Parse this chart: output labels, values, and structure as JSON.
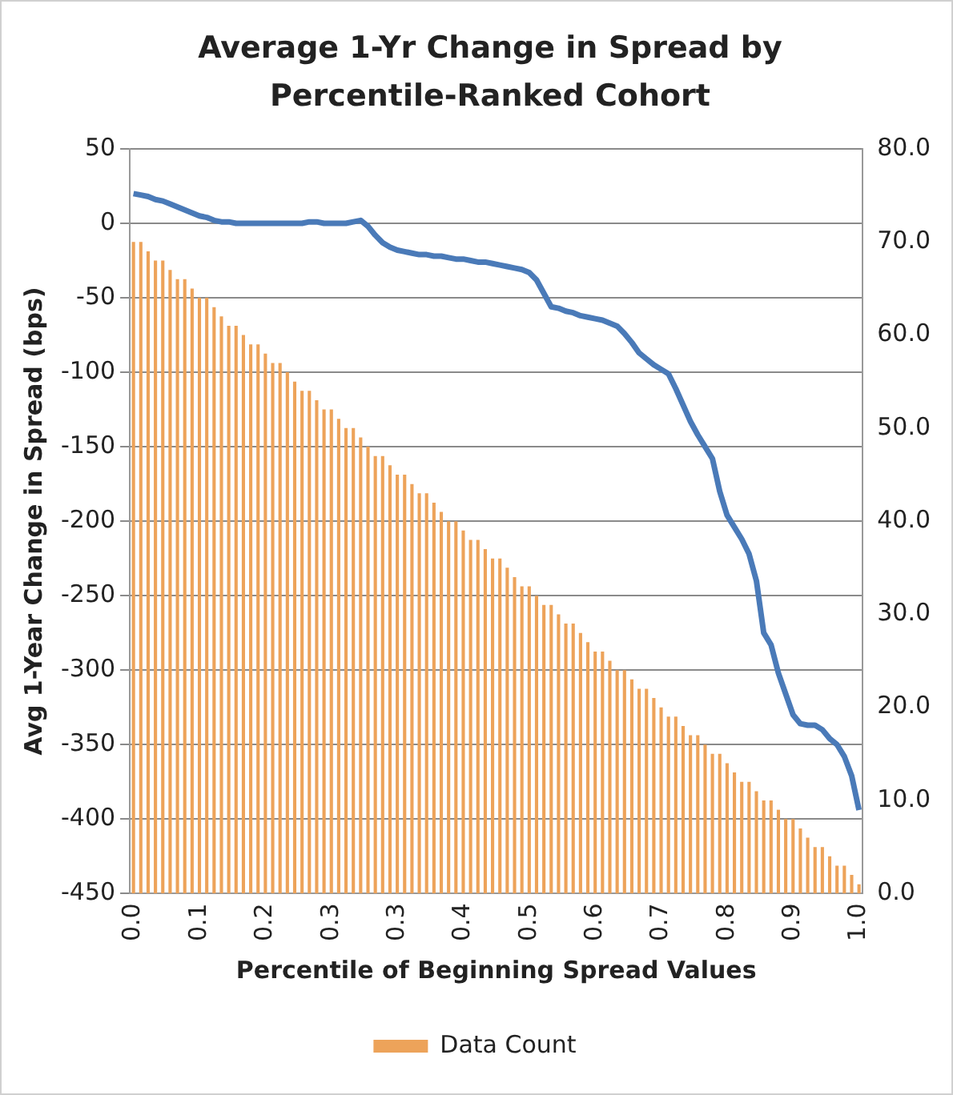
{
  "chart_data": {
    "type": "bar",
    "title": "Average 1-Yr Change in Spread by Percentile-Ranked Cohort",
    "xlabel": "Percentile of Beginning Spread Values",
    "ylabel": "Avg 1-Year Change in Spread (bps)",
    "categories": [
      "0.0",
      null,
      null,
      null,
      null,
      null,
      null,
      null,
      null,
      "0.1",
      null,
      null,
      null,
      null,
      null,
      null,
      null,
      null,
      "0.2",
      null,
      null,
      null,
      null,
      null,
      null,
      null,
      null,
      "0.3",
      null,
      null,
      null,
      null,
      null,
      null,
      null,
      null,
      "0.3",
      null,
      null,
      null,
      null,
      null,
      null,
      null,
      null,
      "0.4",
      null,
      null,
      null,
      null,
      null,
      null,
      null,
      null,
      "0.5",
      null,
      null,
      null,
      null,
      null,
      null,
      null,
      null,
      "0.6",
      null,
      null,
      null,
      null,
      null,
      null,
      null,
      null,
      "0.7",
      null,
      null,
      null,
      null,
      null,
      null,
      null,
      null,
      "0.8",
      null,
      null,
      null,
      null,
      null,
      null,
      null,
      null,
      "0.9",
      null,
      null,
      null,
      null,
      null,
      null,
      null,
      null,
      "1.0"
    ],
    "series": [
      {
        "name": "Data Count",
        "axis": "y2",
        "color": "#eda35a",
        "values": [
          70,
          70,
          69,
          68,
          68,
          67,
          66,
          66,
          65,
          64,
          64,
          63,
          62,
          61,
          61,
          60,
          59,
          59,
          58,
          57,
          57,
          56,
          55,
          54,
          54,
          53,
          52,
          52,
          51,
          50,
          50,
          49,
          48,
          47,
          47,
          46,
          45,
          45,
          44,
          43,
          43,
          42,
          41,
          40,
          40,
          39,
          38,
          38,
          37,
          36,
          36,
          35,
          34,
          33,
          33,
          32,
          31,
          31,
          30,
          29,
          29,
          28,
          27,
          26,
          26,
          25,
          24,
          24,
          23,
          22,
          22,
          21,
          20,
          19,
          19,
          18,
          17,
          17,
          16,
          15,
          15,
          14,
          13,
          12,
          12,
          11,
          10,
          10,
          9,
          8,
          8,
          7,
          6,
          5,
          5,
          4,
          3,
          3,
          2,
          1
        ]
      },
      {
        "type": "line",
        "color": "#4a7ab8",
        "values": [
          20,
          19,
          18,
          16,
          15,
          13,
          11,
          9,
          7,
          5,
          4,
          2,
          1,
          1,
          0,
          0,
          0,
          0,
          0,
          0,
          0,
          0,
          0,
          0,
          1,
          1,
          0,
          0,
          0,
          0,
          1,
          2,
          -2,
          -8,
          -13,
          -16,
          -18,
          -19,
          -20,
          -21,
          -21,
          -22,
          -22,
          -23,
          -24,
          -24,
          -25,
          -26,
          -26,
          -27,
          -28,
          -29,
          -30,
          -31,
          -33,
          -38,
          -47,
          -56,
          -57,
          -59,
          -60,
          -62,
          -63,
          -64,
          -65,
          -67,
          -69,
          -74,
          -80,
          -87,
          -91,
          -95,
          -98,
          -101,
          -111,
          -122,
          -133,
          -142,
          -150,
          -158,
          -180,
          -196,
          -204,
          -212,
          -222,
          -240,
          -275,
          -283,
          -302,
          -316,
          -330,
          -336,
          -337,
          -337,
          -340,
          -346,
          -350,
          -358,
          -371,
          -394
        ]
      }
    ],
    "ylim": [
      -450,
      50
    ],
    "yticks": [
      -450,
      -400,
      -350,
      -300,
      -250,
      -200,
      -150,
      -100,
      -50,
      0,
      50
    ],
    "y2lim": [
      0,
      80
    ],
    "y2ticks": [
      {
        "value": 0,
        "label": "0.0"
      },
      {
        "value": 10,
        "label": "10.0"
      },
      {
        "value": 20,
        "label": "20.0"
      },
      {
        "value": 30,
        "label": "30.0"
      },
      {
        "value": 40,
        "label": "40.0"
      },
      {
        "value": 50,
        "label": "50.0"
      },
      {
        "value": 60,
        "label": "60.0"
      },
      {
        "value": 70,
        "label": "70.0"
      },
      {
        "value": 80,
        "label": "80.0"
      }
    ],
    "grid": "y",
    "legend": "bottom",
    "marker": "none"
  }
}
